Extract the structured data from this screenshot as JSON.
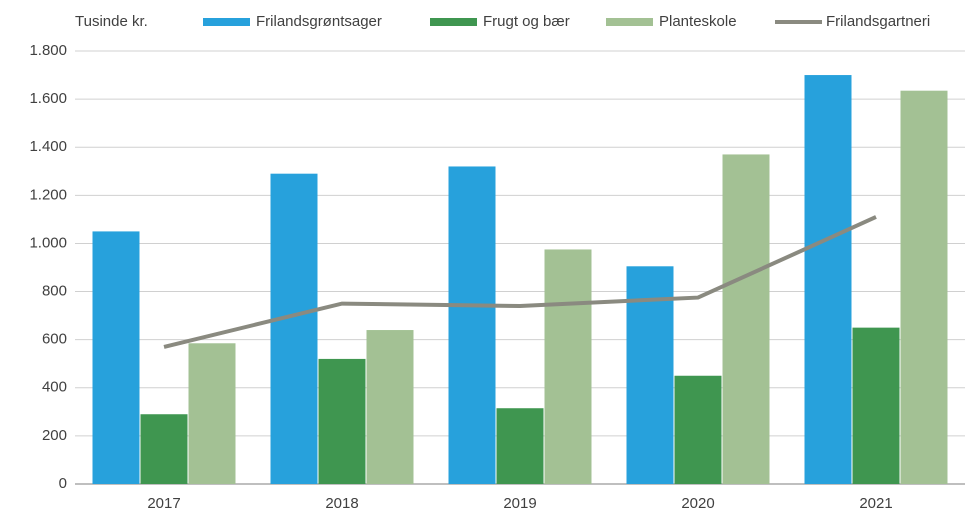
{
  "chart_data": {
    "type": "bar",
    "y_label": "Tusinde kr.",
    "categories": [
      "2017",
      "2018",
      "2019",
      "2020",
      "2021"
    ],
    "series": [
      {
        "name": "Frilandsgrøntsager",
        "color": "#27a1dc",
        "values": [
          1050,
          1290,
          1320,
          905,
          1700
        ]
      },
      {
        "name": "Frugt og bær",
        "color": "#3f9650",
        "values": [
          290,
          520,
          315,
          450,
          650
        ]
      },
      {
        "name": "Planteskole",
        "color": "#a3c194",
        "values": [
          585,
          640,
          975,
          1370,
          1635
        ]
      },
      {
        "name": "Frilandsgartneri",
        "color": "#8a8a80",
        "type": "line",
        "values": [
          570,
          750,
          740,
          775,
          1110
        ]
      }
    ],
    "ylim": [
      0,
      1800
    ],
    "yticks": [
      0,
      200,
      400,
      600,
      800,
      {
        "value": 1000,
        "label": "1.000"
      },
      {
        "value": 1200,
        "label": "1.200"
      },
      {
        "value": 1400,
        "label": "1.400"
      },
      {
        "value": 1600,
        "label": "1.600"
      },
      {
        "value": 1800,
        "label": "1.800"
      }
    ],
    "grid": true,
    "legend": "top"
  }
}
